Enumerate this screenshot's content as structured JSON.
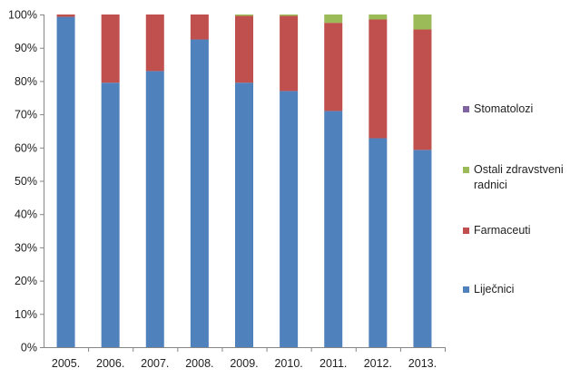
{
  "chart_data": {
    "type": "bar",
    "stacked": true,
    "normalized": true,
    "categories": [
      "2005.",
      "2006.",
      "2007.",
      "2008.",
      "2009.",
      "2010.",
      "2011.",
      "2012.",
      "2013."
    ],
    "series": [
      {
        "name": "Liječnici",
        "color": "#4f81bd",
        "values": [
          99.3,
          79.5,
          83,
          92.5,
          79.5,
          77,
          71,
          62.8,
          59.3
        ]
      },
      {
        "name": "Farmaceuti",
        "color": "#c0504d",
        "values": [
          0.7,
          20.5,
          17,
          7.5,
          20.1,
          22.6,
          26.5,
          35.7,
          36.2
        ]
      },
      {
        "name": "Ostali zdravstveni radnici",
        "color": "#9bbb59",
        "values": [
          0,
          0,
          0,
          0,
          0.4,
          0.4,
          2.5,
          1.5,
          4.5
        ]
      },
      {
        "name": "Stomatolozi",
        "color": "#8064a2",
        "values": [
          0,
          0,
          0,
          0,
          0,
          0,
          0,
          0,
          0
        ]
      }
    ],
    "y_ticks": [
      "0%",
      "10%",
      "20%",
      "30%",
      "40%",
      "50%",
      "60%",
      "70%",
      "80%",
      "90%",
      "100%"
    ],
    "ylim": [
      0,
      100
    ],
    "grid": false,
    "legend_position": "right",
    "legend_order": [
      "Stomatolozi",
      "Ostali zdravstveni radnici",
      "Farmaceuti",
      "Liječnici"
    ]
  }
}
